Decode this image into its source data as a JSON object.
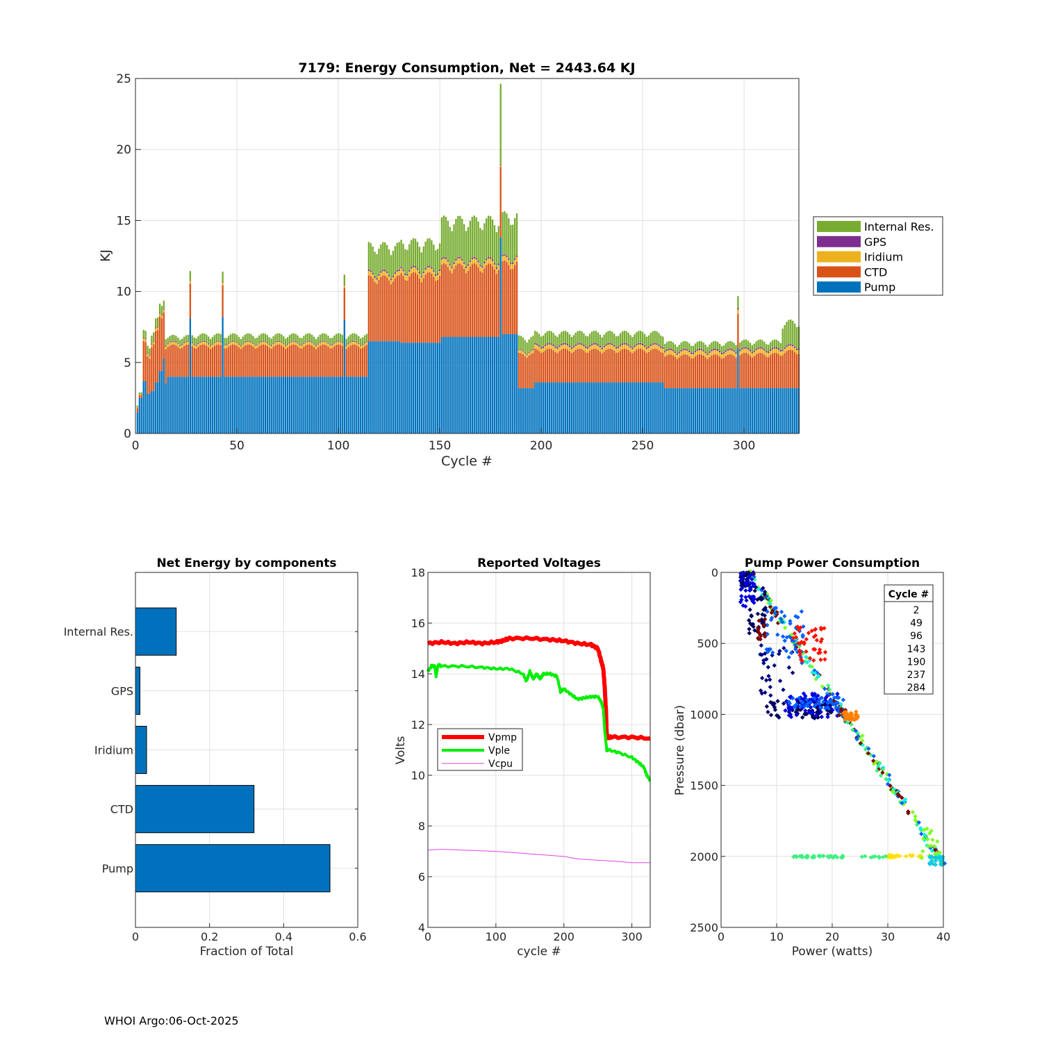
{
  "footer": "WHOI Argo:06-Oct-2025",
  "chart_data": [
    {
      "type": "bar",
      "stacked": true,
      "title": "7179: Energy Consumption,  Net = 2443.64 KJ",
      "xlabel": "Cycle #",
      "ylabel": "KJ",
      "xlim": [
        0,
        327
      ],
      "ylim": [
        0,
        25
      ],
      "xticks": [
        0,
        50,
        100,
        150,
        200,
        250,
        300
      ],
      "yticks": [
        0,
        5,
        10,
        15,
        20,
        25
      ],
      "legend_location": "outside-right",
      "colors": {
        "Internal Res.": "#77AC30",
        "GPS": "#7E2F8E",
        "Iridium": "#EDB120",
        "CTD": "#D95319",
        "Pump": "#0072BD"
      },
      "legend": [
        "Internal Res.",
        "GPS",
        "Iridium",
        "CTD",
        "Pump"
      ],
      "segments": [
        {
          "from": 1,
          "to": 1,
          "pump": 1.5,
          "ctd": 0.3,
          "iridium": 0.05,
          "gps": 0.02,
          "internal": 0.1
        },
        {
          "from": 2,
          "to": 3,
          "pump": 2.5,
          "ctd": 0.2,
          "iridium": 0.05,
          "gps": 0.02,
          "internal": 0.1
        },
        {
          "from": 4,
          "to": 5,
          "pump": 3.7,
          "ctd": 2.6,
          "iridium": 0.2,
          "gps": 0.05,
          "internal": 0.5
        },
        {
          "from": 6,
          "to": 7,
          "pump": 2.8,
          "ctd": 2.6,
          "iridium": 0.2,
          "gps": 0.05,
          "internal": 0.5
        },
        {
          "from": 8,
          "to": 9,
          "pump": 3.0,
          "ctd": 3.2,
          "iridium": 0.2,
          "gps": 0.05,
          "internal": 0.6
        },
        {
          "from": 10,
          "to": 11,
          "pump": 3.6,
          "ctd": 3.4,
          "iridium": 0.2,
          "gps": 0.05,
          "internal": 0.6
        },
        {
          "from": 12,
          "to": 13,
          "pump": 4.4,
          "ctd": 3.6,
          "iridium": 0.2,
          "gps": 0.05,
          "internal": 0.6
        },
        {
          "from": 14,
          "to": 14,
          "pump": 5.3,
          "ctd": 3.3,
          "iridium": 0.2,
          "gps": 0.05,
          "internal": 0.6
        },
        {
          "from": 15,
          "to": 15,
          "pump": 3.5,
          "ctd": 2.6,
          "iridium": 0.2,
          "gps": 0.05,
          "internal": 0.5
        },
        {
          "from": 16,
          "to": 26,
          "pump": 4.0,
          "ctd": 2.1,
          "iridium": 0.2,
          "gps": 0.05,
          "internal": 0.4
        },
        {
          "from": 27,
          "to": 27,
          "pump": 8.1,
          "ctd": 2.3,
          "iridium": 0.2,
          "gps": 0.05,
          "internal": 0.6
        },
        {
          "from": 28,
          "to": 42,
          "pump": 4.0,
          "ctd": 2.1,
          "iridium": 0.2,
          "gps": 0.05,
          "internal": 0.5
        },
        {
          "from": 43,
          "to": 43,
          "pump": 8.2,
          "ctd": 2.2,
          "iridium": 0.2,
          "gps": 0.05,
          "internal": 0.7
        },
        {
          "from": 44,
          "to": 102,
          "pump": 4.0,
          "ctd": 2.1,
          "iridium": 0.2,
          "gps": 0.05,
          "internal": 0.5
        },
        {
          "from": 103,
          "to": 103,
          "pump": 8.0,
          "ctd": 2.3,
          "iridium": 0.2,
          "gps": 0.05,
          "internal": 0.7
        },
        {
          "from": 104,
          "to": 114,
          "pump": 4.0,
          "ctd": 2.1,
          "iridium": 0.2,
          "gps": 0.05,
          "internal": 0.5
        },
        {
          "from": 115,
          "to": 130,
          "pump": 6.5,
          "ctd": 4.3,
          "iridium": 0.3,
          "gps": 0.1,
          "internal": 1.8
        },
        {
          "from": 131,
          "to": 150,
          "pump": 6.4,
          "ctd": 4.6,
          "iridium": 0.35,
          "gps": 0.1,
          "internal": 1.8
        },
        {
          "from": 151,
          "to": 179,
          "pump": 6.8,
          "ctd": 4.8,
          "iridium": 0.35,
          "gps": 0.1,
          "internal": 2.7
        },
        {
          "from": 180,
          "to": 180,
          "pump": 13.8,
          "ctd": 4.8,
          "iridium": 0.1,
          "gps": 0.05,
          "internal": 5.5
        },
        {
          "from": 181,
          "to": 188,
          "pump": 7.0,
          "ctd": 4.8,
          "iridium": 0.35,
          "gps": 0.1,
          "internal": 2.8
        },
        {
          "from": 189,
          "to": 196,
          "pump": 3.2,
          "ctd": 2.3,
          "iridium": 0.2,
          "gps": 0.05,
          "internal": 0.9
        },
        {
          "from": 197,
          "to": 260,
          "pump": 3.6,
          "ctd": 2.2,
          "iridium": 0.3,
          "gps": 0.1,
          "internal": 0.8
        },
        {
          "from": 261,
          "to": 296,
          "pump": 3.2,
          "ctd": 2.2,
          "iridium": 0.3,
          "gps": 0.1,
          "internal": 0.5
        },
        {
          "from": 297,
          "to": 297,
          "pump": 6.0,
          "ctd": 2.6,
          "iridium": 0.3,
          "gps": 0.1,
          "internal": 0.9
        },
        {
          "from": 298,
          "to": 318,
          "pump": 3.2,
          "ctd": 2.3,
          "iridium": 0.3,
          "gps": 0.1,
          "internal": 0.5
        },
        {
          "from": 319,
          "to": 327,
          "pump": 3.2,
          "ctd": 2.5,
          "iridium": 0.3,
          "gps": 0.1,
          "internal": 1.6
        }
      ]
    },
    {
      "type": "bar",
      "orientation": "horizontal",
      "title": "Net Energy by components",
      "xlabel": "Fraction of Total",
      "xlim": [
        0,
        0.6
      ],
      "xticks": [
        0,
        0.2,
        0.4,
        0.6
      ],
      "categories": [
        "Internal Res.",
        "GPS",
        "Iridium",
        "CTD",
        "Pump"
      ],
      "values": [
        0.11,
        0.012,
        0.03,
        0.32,
        0.525
      ],
      "color": "#0072BD"
    },
    {
      "type": "line",
      "title": "Reported Voltages",
      "xlabel": "cycle #",
      "ylabel": "Volts",
      "xlim": [
        0,
        327
      ],
      "ylim": [
        4,
        18
      ],
      "xticks": [
        0,
        100,
        200,
        300
      ],
      "yticks": [
        4,
        6,
        8,
        10,
        12,
        14,
        16,
        18
      ],
      "legend_location": "middle-left",
      "series": [
        {
          "name": "Vpmp",
          "color": "#FF0000",
          "width": 6,
          "x": [
            0,
            20,
            40,
            60,
            80,
            100,
            110,
            120,
            150,
            180,
            200,
            220,
            240,
            250,
            255,
            258,
            260,
            262,
            263,
            265,
            270,
            300,
            327
          ],
          "y": [
            15.2,
            15.25,
            15.2,
            15.25,
            15.2,
            15.25,
            15.3,
            15.4,
            15.4,
            15.35,
            15.3,
            15.2,
            15.15,
            15.0,
            14.5,
            14.2,
            13.5,
            12.5,
            11.6,
            11.5,
            11.5,
            11.5,
            11.45
          ]
        },
        {
          "name": "Vple",
          "color": "#00EE00",
          "width": 4,
          "x": [
            0,
            5,
            10,
            12,
            15,
            20,
            50,
            80,
            100,
            120,
            140,
            145,
            150,
            155,
            160,
            165,
            170,
            180,
            190,
            195,
            200,
            210,
            220,
            230,
            240,
            250,
            255,
            258,
            260,
            263,
            265,
            280,
            300,
            310,
            318,
            322,
            327
          ],
          "y": [
            14.1,
            14.3,
            14.3,
            13.9,
            14.35,
            14.3,
            14.3,
            14.25,
            14.2,
            14.2,
            14.0,
            13.7,
            14.1,
            13.8,
            14.0,
            13.8,
            14.0,
            14.0,
            13.9,
            13.3,
            13.4,
            13.2,
            13.0,
            13.05,
            13.1,
            13.1,
            12.9,
            12.6,
            11.8,
            11.0,
            11.0,
            10.9,
            10.7,
            10.5,
            10.3,
            10.0,
            9.8
          ]
        },
        {
          "name": "Vcpu",
          "color": "#E040E0",
          "width": 1,
          "x": [
            0,
            20,
            50,
            100,
            150,
            200,
            220,
            250,
            280,
            300,
            327
          ],
          "y": [
            7.05,
            7.08,
            7.05,
            7.0,
            6.9,
            6.8,
            6.7,
            6.65,
            6.6,
            6.55,
            6.55
          ]
        }
      ]
    },
    {
      "type": "scatter",
      "title": "Pump Power Consumption",
      "xlabel": "Power (watts)",
      "ylabel": "Pressure (dbar)",
      "xlim": [
        0,
        40
      ],
      "ylim": [
        0,
        2500
      ],
      "y_reversed": true,
      "xticks": [
        0,
        10,
        20,
        30,
        40
      ],
      "yticks": [
        0,
        500,
        1000,
        1500,
        2000,
        2500
      ],
      "legend_title": "Cycle #",
      "legend_location": "top-right",
      "legend": [
        {
          "name": "2",
          "color": "#800000"
        },
        {
          "name": "49",
          "color": "#FF1000"
        },
        {
          "name": "96",
          "color": "#FF8000"
        },
        {
          "name": "143",
          "color": "#80FF20"
        },
        {
          "name": "190",
          "color": "#10F0E0"
        },
        {
          "name": "237",
          "color": "#0080FF"
        },
        {
          "name": "284",
          "color": "#0000E0"
        }
      ],
      "clusters": [
        {
          "color": "#000060",
          "x": [
            3.5,
            5
          ],
          "y": [
            0,
            100
          ],
          "n": 40
        },
        {
          "color": "#000060",
          "x": [
            5,
            8
          ],
          "y": [
            100,
            450
          ],
          "n": 40
        },
        {
          "color": "#000060",
          "x": [
            8,
            20
          ],
          "y": [
            900,
            1030
          ],
          "n": 70
        },
        {
          "color": "#000080",
          "x": [
            7,
            13
          ],
          "y": [
            500,
            900
          ],
          "n": 30
        },
        {
          "color": "#0000E0",
          "x": [
            3.5,
            6
          ],
          "y": [
            0,
            250
          ],
          "n": 40
        },
        {
          "color": "#0000E0",
          "x": [
            11,
            21
          ],
          "y": [
            850,
            1020
          ],
          "n": 70
        },
        {
          "color": "#0060FF",
          "x": [
            8,
            15
          ],
          "y": [
            250,
            650
          ],
          "n": 40
        },
        {
          "color": "#0060FF",
          "x": [
            12,
            22
          ],
          "y": [
            880,
            960
          ],
          "n": 40
        },
        {
          "color": "#800000",
          "x": [
            6.5,
            8
          ],
          "y": [
            330,
            480
          ],
          "n": 15
        },
        {
          "color": "#800000",
          "x": [
            21,
            23
          ],
          "y": [
            960,
            1010
          ],
          "n": 8
        },
        {
          "color": "#FF1000",
          "x": [
            13,
            19
          ],
          "y": [
            380,
            640
          ],
          "n": 40
        },
        {
          "color": "#FF8000",
          "x": [
            22,
            25
          ],
          "y": [
            980,
            1040
          ],
          "n": 35
        },
        {
          "color": "#FFE000",
          "x": [
            30,
            36
          ],
          "y": [
            1990,
            2010
          ],
          "n": 25
        },
        {
          "color": "#40F080",
          "x": [
            13,
            22
          ],
          "y": [
            1995,
            2010
          ],
          "n": 40
        },
        {
          "color": "#40F080",
          "x": [
            23,
            30
          ],
          "y": [
            1995,
            2010
          ],
          "n": 10
        },
        {
          "color": "#80FF20",
          "x": [
            36,
            39
          ],
          "y": [
            1800,
            2020
          ],
          "n": 15
        },
        {
          "color": "#10C8E0",
          "x": [
            37.5,
            40
          ],
          "y": [
            2000,
            2060
          ],
          "n": 20
        }
      ],
      "trend": {
        "x": [
          5,
          40
        ],
        "y": [
          0,
          2050
        ],
        "colors": [
          "#10F0E0",
          "#40F080",
          "#800000",
          "#0060FF",
          "#80FF20"
        ],
        "n": 260
      }
    }
  ]
}
